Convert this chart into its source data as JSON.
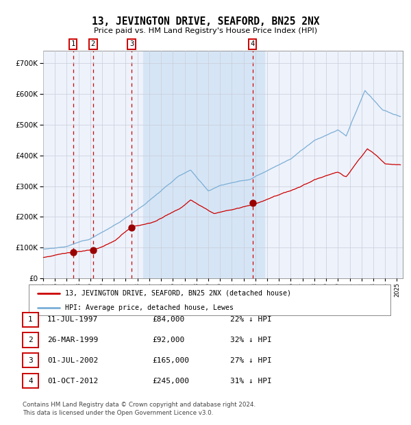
{
  "title": "13, JEVINGTON DRIVE, SEAFORD, BN25 2NX",
  "subtitle": "Price paid vs. HM Land Registry's House Price Index (HPI)",
  "ytick_vals": [
    0,
    100000,
    200000,
    300000,
    400000,
    500000,
    600000,
    700000
  ],
  "ylim": [
    0,
    740000
  ],
  "xlim_start": 1995.0,
  "xlim_end": 2025.5,
  "background_color": "#ffffff",
  "plot_bg_color": "#eef2fb",
  "shaded_region": [
    2003.5,
    2013.75
  ],
  "shaded_color": "#d6e5f5",
  "grid_color": "#c8ccd8",
  "purchases": [
    {
      "date_num": 1997.53,
      "price": 84000,
      "label": "1"
    },
    {
      "date_num": 1999.23,
      "price": 92000,
      "label": "2"
    },
    {
      "date_num": 2002.5,
      "price": 165000,
      "label": "3"
    },
    {
      "date_num": 2012.75,
      "price": 245000,
      "label": "4"
    }
  ],
  "legend_entries": [
    "13, JEVINGTON DRIVE, SEAFORD, BN25 2NX (detached house)",
    "HPI: Average price, detached house, Lewes"
  ],
  "table_rows": [
    {
      "num": "1",
      "date": "11-JUL-1997",
      "price": "£84,000",
      "hpi": "22% ↓ HPI"
    },
    {
      "num": "2",
      "date": "26-MAR-1999",
      "price": "£92,000",
      "hpi": "32% ↓ HPI"
    },
    {
      "num": "3",
      "date": "01-JUL-2002",
      "price": "£165,000",
      "hpi": "27% ↓ HPI"
    },
    {
      "num": "4",
      "date": "01-OCT-2012",
      "price": "£245,000",
      "hpi": "31% ↓ HPI"
    }
  ],
  "footer": "Contains HM Land Registry data © Crown copyright and database right 2024.\nThis data is licensed under the Open Government Licence v3.0.",
  "line_red": "#cc0000",
  "line_blue": "#7aaed6",
  "dot_color": "#990000",
  "dashed_color": "#cc0000",
  "box_color": "#cc0000"
}
